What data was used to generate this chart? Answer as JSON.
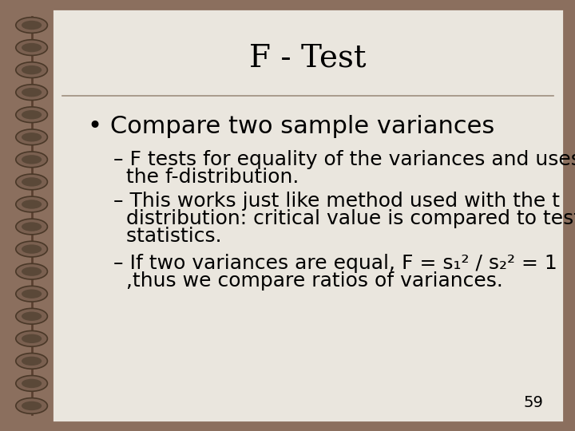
{
  "title": "F - Test",
  "background_color": "#EAE6DE",
  "border_color": "#8B6F5E",
  "slide_bg": "#8B6F5E",
  "title_color": "#000000",
  "text_color": "#000000",
  "separator_color": "#9E8E7E",
  "bullet": "• Compare two sample variances",
  "sub1_line1": "– F tests for equality of the variances and uses",
  "sub1_line2": "  the f-distribution.",
  "sub2_line1": "– This works just like method used with the t",
  "sub2_line2": "  distribution: critical value is compared to test",
  "sub2_line3": "  statistics.",
  "sub3_line1": "– If two variances are equal, F = s₁² / s₂² = 1",
  "sub3_line2": "  ,thus we compare ratios of variances.",
  "page_number": "59",
  "title_fontsize": 28,
  "bullet_fontsize": 22,
  "sub_fontsize": 18,
  "page_fontsize": 14
}
